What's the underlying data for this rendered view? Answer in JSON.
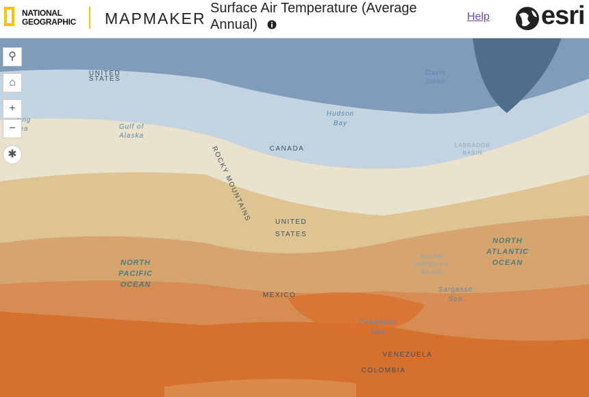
{
  "header": {
    "brand": [
      "NATIONAL",
      "GEOGRAPHIC"
    ],
    "app": "MAPMAKER",
    "title": "Surface Air Temperature (Average Annual)",
    "help": "Help",
    "esri": "esri"
  },
  "map_labels": [
    [
      "UNITED",
      "STATES"
    ],
    [
      "Davis",
      "Strait"
    ],
    [
      "Hudson",
      "Bay"
    ],
    [
      "Gulf of",
      "Alaska"
    ],
    [
      "ring",
      "ea"
    ],
    [
      "CANADA"
    ],
    [
      "LABRADOR",
      "BASIN"
    ],
    [
      "ROCKY MOUNTAINS"
    ],
    [
      "UNITED",
      "STATES"
    ],
    [
      "NORTH",
      "ATLANTIC",
      "OCEAN"
    ],
    [
      "NORTH",
      "AMERICAN",
      "BASIN"
    ],
    [
      "NORTH",
      "PACIFIC",
      "OCEAN"
    ],
    [
      "MEXICO"
    ],
    [
      "Sargasso",
      "Sea"
    ],
    [
      "Caribbean",
      "Sea"
    ],
    [
      "VENEZUELA"
    ],
    [
      "COLOMBIA"
    ]
  ]
}
